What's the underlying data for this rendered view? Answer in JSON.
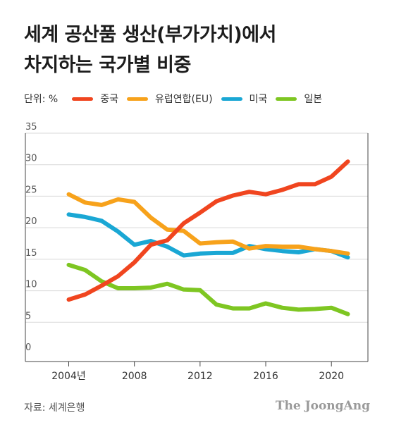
{
  "title_lines": [
    "세계 공산품 생산(부가가치)에서",
    "차지하는 국가별 비중"
  ],
  "unit_label": "단위: %",
  "source": "자료: 세계은행",
  "brand": "The JoongAng",
  "chart_data": {
    "type": "line",
    "x": [
      2004,
      2005,
      2006,
      2007,
      2008,
      2009,
      2010,
      2011,
      2012,
      2013,
      2014,
      2015,
      2016,
      2017,
      2018,
      2019,
      2020,
      2021
    ],
    "xticks": [
      2004,
      2008,
      2012,
      2016,
      2020
    ],
    "xtick_labels": [
      "2004년",
      "2008",
      "2012",
      "2016",
      "2020"
    ],
    "ylim": [
      0,
      35
    ],
    "yticks": [
      0,
      5,
      10,
      15,
      20,
      25,
      30,
      35
    ],
    "grid": true,
    "legend": "top",
    "series": [
      {
        "name": "중국",
        "color": "#f0451f",
        "values": [
          8.6,
          9.4,
          10.8,
          12.3,
          14.5,
          17.3,
          18.0,
          20.7,
          22.4,
          24.2,
          25.1,
          25.7,
          25.3,
          26.0,
          26.9,
          26.9,
          28.1,
          30.5
        ]
      },
      {
        "name": "유럽연합(EU)",
        "color": "#f7a21b",
        "values": [
          25.3,
          24.0,
          23.6,
          24.5,
          24.1,
          21.6,
          19.7,
          19.5,
          17.5,
          17.7,
          17.8,
          16.7,
          17.1,
          17.0,
          17.0,
          16.6,
          16.3,
          15.9
        ]
      },
      {
        "name": "미국",
        "color": "#1aa7d4",
        "values": [
          22.1,
          21.7,
          21.1,
          19.4,
          17.3,
          17.9,
          17.0,
          15.6,
          15.9,
          16.0,
          16.0,
          17.1,
          16.6,
          16.3,
          16.1,
          16.6,
          16.3,
          15.3
        ]
      },
      {
        "name": "일본",
        "color": "#7ec622",
        "values": [
          14.1,
          13.3,
          11.5,
          10.4,
          10.4,
          10.5,
          11.1,
          10.2,
          10.1,
          7.8,
          7.2,
          7.2,
          8.0,
          7.3,
          7.0,
          7.1,
          7.3,
          6.3
        ]
      }
    ]
  }
}
